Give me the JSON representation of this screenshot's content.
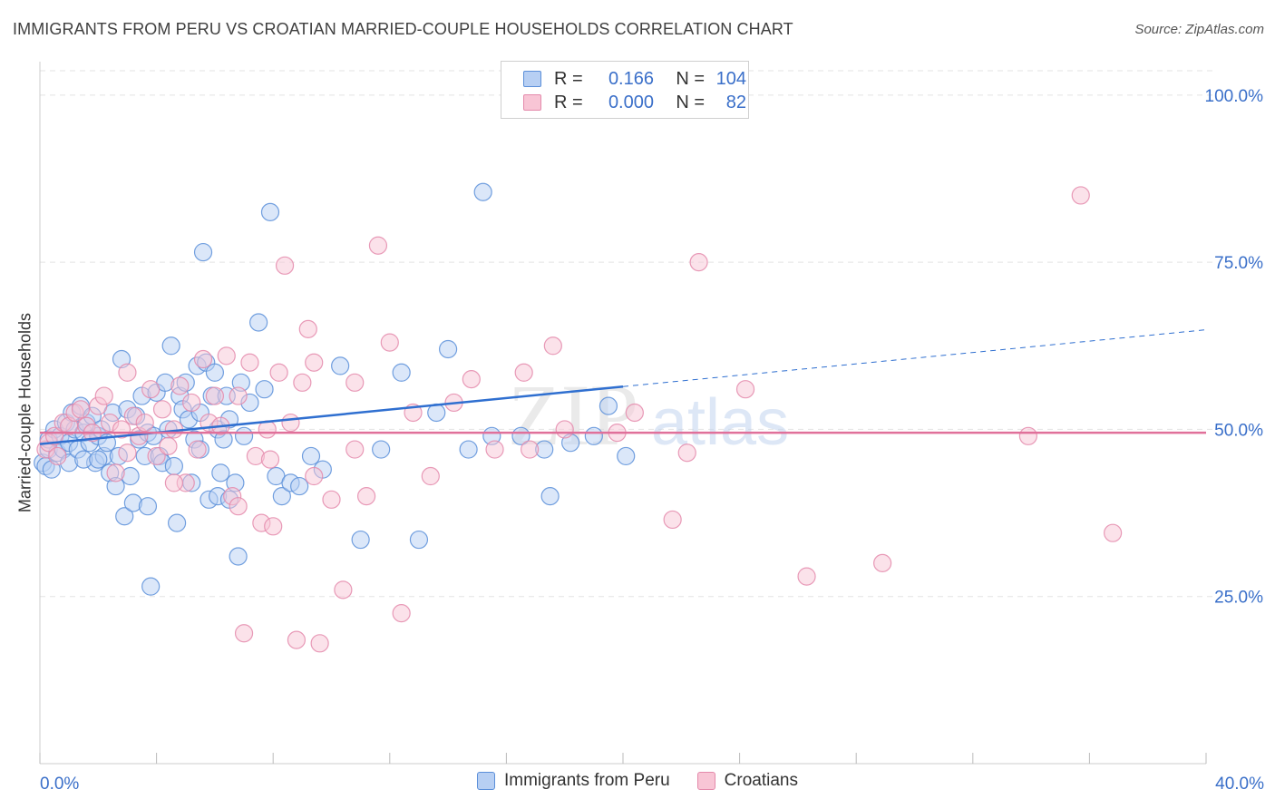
{
  "title": "IMMIGRANTS FROM PERU VS CROATIAN MARRIED-COUPLE HOUSEHOLDS CORRELATION CHART",
  "source": "Source: ZipAtlas.com",
  "watermark": {
    "zip": "ZIP",
    "atlas": "atlas"
  },
  "legend": {
    "r_label": "R =",
    "n_label": "N =",
    "rows": [
      {
        "name": "Immigrants from Peru",
        "r": "0.166",
        "n": "104",
        "color": "#5b8fd9",
        "fill": "#b7cff3"
      },
      {
        "name": "Croatians",
        "r": "0.000",
        "n": "82",
        "color": "#e48aab",
        "fill": "#f8c5d5"
      }
    ]
  },
  "chart_data": {
    "type": "scatter",
    "title": "IMMIGRANTS FROM PERU VS CROATIAN MARRIED-COUPLE HOUSEHOLDS CORRELATION CHART",
    "xlabel": "",
    "ylabel": "Married-couple Households",
    "xlim": [
      0,
      40
    ],
    "ylim": [
      0,
      105
    ],
    "x_tick_labels": [
      "0.0%",
      "40.0%"
    ],
    "y_ticks": [
      25,
      50,
      75,
      100
    ],
    "y_tick_labels": [
      "25.0%",
      "50.0%",
      "75.0%",
      "100.0%"
    ],
    "grid": "horizontal dashed",
    "legend_position": "top-center",
    "series": [
      {
        "name": "Immigrants from Peru",
        "color": "#5b8fd9",
        "trend": {
          "x0": 0,
          "y0": 47.8,
          "x1": 20,
          "y1": 56.4,
          "dashed_to_x": 40,
          "dashed_to_y": 64.9
        },
        "points": [
          [
            0.1,
            45.0
          ],
          [
            0.2,
            44.5
          ],
          [
            0.3,
            47.0
          ],
          [
            0.3,
            48.5
          ],
          [
            0.4,
            44.0
          ],
          [
            0.5,
            50.0
          ],
          [
            0.6,
            46.5
          ],
          [
            0.7,
            49.0
          ],
          [
            0.8,
            47.0
          ],
          [
            0.9,
            51.0
          ],
          [
            1.0,
            48.0
          ],
          [
            1.0,
            45.0
          ],
          [
            1.1,
            52.5
          ],
          [
            1.2,
            50.0
          ],
          [
            1.3,
            47.0
          ],
          [
            1.4,
            53.5
          ],
          [
            1.5,
            49.5
          ],
          [
            1.6,
            51.0
          ],
          [
            1.7,
            48.0
          ],
          [
            1.8,
            52.0
          ],
          [
            1.9,
            45.0
          ],
          [
            2.0,
            49.0
          ],
          [
            2.1,
            50.0
          ],
          [
            2.2,
            46.0
          ],
          [
            2.3,
            48.0
          ],
          [
            2.4,
            43.5
          ],
          [
            2.5,
            52.5
          ],
          [
            2.6,
            41.5
          ],
          [
            2.7,
            46.0
          ],
          [
            2.8,
            60.5
          ],
          [
            2.9,
            37.0
          ],
          [
            3.0,
            53.0
          ],
          [
            3.1,
            43.0
          ],
          [
            3.2,
            39.0
          ],
          [
            3.3,
            52.0
          ],
          [
            3.4,
            48.5
          ],
          [
            3.5,
            55.0
          ],
          [
            3.6,
            46.0
          ],
          [
            3.7,
            49.5
          ],
          [
            3.8,
            26.5
          ],
          [
            3.9,
            49.0
          ],
          [
            4.0,
            55.5
          ],
          [
            4.1,
            46.0
          ],
          [
            4.2,
            45.0
          ],
          [
            4.3,
            57.0
          ],
          [
            4.4,
            50.0
          ],
          [
            4.5,
            62.5
          ],
          [
            4.6,
            44.5
          ],
          [
            4.7,
            36.0
          ],
          [
            4.8,
            55.0
          ],
          [
            4.9,
            53.0
          ],
          [
            5.0,
            57.0
          ],
          [
            5.1,
            51.5
          ],
          [
            5.2,
            42.0
          ],
          [
            5.3,
            48.5
          ],
          [
            5.4,
            59.5
          ],
          [
            5.5,
            52.5
          ],
          [
            5.6,
            76.5
          ],
          [
            5.7,
            60.0
          ],
          [
            5.8,
            39.5
          ],
          [
            5.9,
            55.0
          ],
          [
            6.0,
            58.5
          ],
          [
            6.1,
            50.0
          ],
          [
            6.2,
            43.5
          ],
          [
            6.3,
            48.5
          ],
          [
            6.4,
            55.0
          ],
          [
            6.5,
            51.5
          ],
          [
            6.7,
            42.0
          ],
          [
            6.8,
            31.0
          ],
          [
            6.9,
            57.0
          ],
          [
            7.0,
            49.0
          ],
          [
            7.2,
            54.0
          ],
          [
            7.5,
            66.0
          ],
          [
            7.7,
            56.0
          ],
          [
            7.9,
            82.5
          ],
          [
            8.1,
            43.0
          ],
          [
            8.3,
            40.0
          ],
          [
            8.6,
            42.0
          ],
          [
            8.9,
            41.5
          ],
          [
            9.3,
            46.0
          ],
          [
            9.7,
            44.0
          ],
          [
            10.3,
            59.5
          ],
          [
            11.0,
            33.5
          ],
          [
            11.7,
            47.0
          ],
          [
            12.4,
            58.5
          ],
          [
            13.0,
            33.5
          ],
          [
            13.6,
            52.5
          ],
          [
            14.0,
            62.0
          ],
          [
            14.7,
            47.0
          ],
          [
            15.5,
            49.0
          ],
          [
            16.5,
            49.0
          ],
          [
            17.3,
            47.0
          ],
          [
            18.2,
            48.0
          ],
          [
            19.0,
            49.0
          ],
          [
            19.5,
            53.5
          ],
          [
            15.2,
            85.5
          ],
          [
            20.1,
            46.0
          ],
          [
            17.5,
            40.0
          ],
          [
            6.1,
            40.0
          ],
          [
            1.5,
            45.5
          ],
          [
            2.0,
            45.5
          ],
          [
            3.7,
            38.5
          ],
          [
            5.5,
            47.0
          ],
          [
            6.5,
            39.5
          ]
        ]
      },
      {
        "name": "Croatians",
        "color": "#e48aab",
        "trend": {
          "x0": 0,
          "y0": 49.5,
          "x1": 40,
          "y1": 49.5
        },
        "points": [
          [
            0.2,
            47.0
          ],
          [
            0.3,
            48.0
          ],
          [
            0.5,
            49.0
          ],
          [
            0.6,
            46.0
          ],
          [
            0.8,
            51.0
          ],
          [
            1.0,
            50.5
          ],
          [
            1.2,
            52.5
          ],
          [
            1.4,
            53.0
          ],
          [
            1.6,
            50.5
          ],
          [
            1.8,
            49.5
          ],
          [
            2.0,
            53.5
          ],
          [
            2.2,
            55.0
          ],
          [
            2.4,
            51.0
          ],
          [
            2.6,
            43.5
          ],
          [
            2.8,
            50.0
          ],
          [
            3.0,
            58.5
          ],
          [
            3.2,
            52.0
          ],
          [
            3.4,
            49.0
          ],
          [
            3.6,
            51.0
          ],
          [
            3.8,
            56.0
          ],
          [
            4.0,
            46.0
          ],
          [
            4.2,
            53.0
          ],
          [
            4.4,
            47.5
          ],
          [
            4.6,
            50.0
          ],
          [
            4.8,
            56.5
          ],
          [
            5.0,
            42.0
          ],
          [
            5.2,
            54.0
          ],
          [
            5.4,
            47.0
          ],
          [
            5.6,
            60.5
          ],
          [
            5.8,
            51.0
          ],
          [
            6.0,
            55.0
          ],
          [
            6.2,
            50.5
          ],
          [
            6.4,
            61.0
          ],
          [
            6.6,
            40.0
          ],
          [
            6.8,
            55.0
          ],
          [
            7.0,
            19.5
          ],
          [
            7.2,
            60.0
          ],
          [
            7.4,
            46.0
          ],
          [
            7.6,
            36.0
          ],
          [
            7.8,
            50.0
          ],
          [
            8.0,
            35.5
          ],
          [
            8.2,
            58.5
          ],
          [
            8.4,
            74.5
          ],
          [
            8.6,
            51.0
          ],
          [
            8.8,
            18.5
          ],
          [
            9.0,
            57.0
          ],
          [
            9.2,
            65.0
          ],
          [
            9.4,
            60.0
          ],
          [
            9.6,
            18.0
          ],
          [
            10.0,
            39.5
          ],
          [
            10.4,
            26.0
          ],
          [
            10.8,
            57.0
          ],
          [
            11.2,
            40.0
          ],
          [
            11.6,
            77.5
          ],
          [
            12.0,
            63.0
          ],
          [
            12.4,
            22.5
          ],
          [
            12.8,
            52.5
          ],
          [
            13.4,
            43.0
          ],
          [
            14.2,
            54.0
          ],
          [
            14.8,
            57.5
          ],
          [
            15.6,
            47.0
          ],
          [
            16.6,
            58.5
          ],
          [
            17.6,
            62.5
          ],
          [
            18.0,
            50.0
          ],
          [
            19.8,
            49.5
          ],
          [
            20.4,
            52.5
          ],
          [
            22.6,
            75.0
          ],
          [
            24.2,
            56.0
          ],
          [
            26.3,
            28.0
          ],
          [
            28.9,
            30.0
          ],
          [
            33.9,
            49.0
          ],
          [
            35.7,
            85.0
          ],
          [
            36.8,
            34.5
          ],
          [
            22.2,
            46.5
          ],
          [
            21.7,
            36.5
          ],
          [
            16.8,
            47.0
          ],
          [
            3.0,
            46.5
          ],
          [
            4.6,
            42.0
          ],
          [
            6.8,
            38.5
          ],
          [
            7.9,
            45.5
          ],
          [
            9.4,
            43.0
          ],
          [
            10.8,
            47.0
          ]
        ]
      }
    ]
  }
}
